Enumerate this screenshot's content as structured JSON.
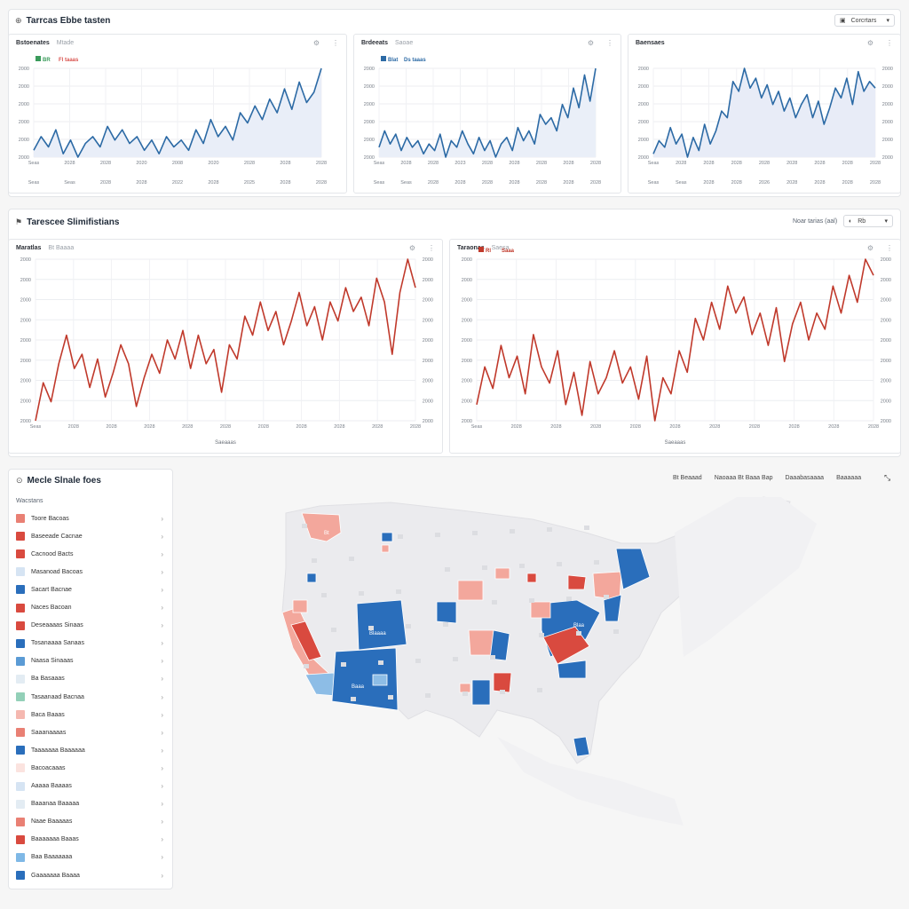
{
  "header": {
    "icon": "chart-icon",
    "title": "Tarrcas Ebbe tasten",
    "dropdown_label": "Corcrtars"
  },
  "top_charts": [
    {
      "title": "Bstoenates",
      "subtitle": "Mtade",
      "tag1": "BR",
      "tag2": "Fl taaas",
      "tag_colors": [
        "#3a9b5b",
        "#d9534f"
      ],
      "line_color": "#2c6aa5",
      "fill": "#e9eef8",
      "y_ticks": [
        "2000",
        "2000",
        "2000",
        "2000",
        "2000",
        "2000"
      ],
      "x_ticks": [
        "Seas",
        "2028",
        "2028",
        "2020",
        "2008",
        "2020",
        "2028",
        "2028",
        "2028"
      ],
      "x_ticks2": [
        "Seas",
        "Seas",
        "2028",
        "2028",
        "2022",
        "2028",
        "2025",
        "2028",
        "2028"
      ],
      "chart_data": {
        "type": "line",
        "x": [
          1,
          2,
          3,
          4,
          5,
          6,
          7,
          8,
          9,
          10,
          11,
          12,
          13,
          14,
          15,
          16,
          17,
          18,
          19,
          20,
          21,
          22,
          23,
          24,
          25,
          26,
          27,
          28,
          29,
          30,
          31,
          32,
          33,
          34,
          35,
          36,
          37,
          38,
          39,
          40
        ],
        "series": [
          {
            "values": [
              22,
              30,
              24,
              34,
              20,
              28,
              18,
              26,
              30,
              24,
              36,
              28,
              34,
              26,
              30,
              22,
              28,
              20,
              30,
              24,
              28,
              22,
              34,
              26,
              40,
              30,
              36,
              28,
              44,
              38,
              48,
              40,
              52,
              44,
              58,
              46,
              62,
              50,
              56,
              70
            ]
          }
        ]
      }
    },
    {
      "title": "Brdeeats",
      "subtitle": "Saoae",
      "tag1": "Blat",
      "tag2": "Ds taaas",
      "tag_colors": [
        "#2c6aa5",
        "#2c6aa5"
      ],
      "line_color": "#2c6aa5",
      "fill": "#eaeff8",
      "y_ticks": [
        "2000",
        "2000",
        "2000",
        "2000",
        "2000",
        "2000"
      ],
      "x_ticks": [
        "Seas",
        "2028",
        "2028",
        "2023",
        "2028",
        "2028",
        "2028",
        "2028",
        "2028"
      ],
      "x_ticks2": [
        "Seas",
        "Seas",
        "2028",
        "2028",
        "2028",
        "2028",
        "2028",
        "2028",
        "2028"
      ],
      "chart_data": {
        "type": "line",
        "x": [
          1,
          2,
          3,
          4,
          5,
          6,
          7,
          8,
          9,
          10,
          11,
          12,
          13,
          14,
          15,
          16,
          17,
          18,
          19,
          20,
          21,
          22,
          23,
          24,
          25,
          26,
          27,
          28,
          29,
          30,
          31,
          32,
          33,
          34,
          35,
          36,
          37,
          38,
          39,
          40
        ],
        "series": [
          {
            "values": [
              26,
              36,
              28,
              34,
              24,
              32,
              26,
              30,
              22,
              28,
              24,
              34,
              20,
              30,
              26,
              36,
              28,
              22,
              32,
              24,
              30,
              20,
              28,
              32,
              24,
              38,
              30,
              36,
              28,
              46,
              40,
              44,
              36,
              52,
              44,
              62,
              50,
              70,
              54,
              74
            ]
          }
        ]
      }
    },
    {
      "title": "Baensaes",
      "subtitle": "",
      "tag1": "",
      "tag2": "",
      "tag_colors": [
        "#2c6aa5",
        "#2c6aa5"
      ],
      "line_color": "#2c6aa5",
      "fill": "#e8ecf7",
      "y_ticks": [
        "2000",
        "2000",
        "2000",
        "2000",
        "2000",
        "2000"
      ],
      "x_ticks": [
        "Seas",
        "2028",
        "2028",
        "2028",
        "2028",
        "2028",
        "2028",
        "2028",
        "2028"
      ],
      "x_ticks2": [
        "Seas",
        "Seas",
        "2028",
        "2028",
        "2026",
        "2028",
        "2028",
        "2028",
        "2028"
      ],
      "chart_data": {
        "type": "line",
        "x": [
          1,
          2,
          3,
          4,
          5,
          6,
          7,
          8,
          9,
          10,
          11,
          12,
          13,
          14,
          15,
          16,
          17,
          18,
          19,
          20,
          21,
          22,
          23,
          24,
          25,
          26,
          27,
          28,
          29,
          30,
          31,
          32,
          33,
          34,
          35,
          36,
          37,
          38,
          39,
          40
        ],
        "series": [
          {
            "values": [
              40,
              48,
              44,
              56,
              46,
              52,
              38,
              50,
              42,
              58,
              46,
              54,
              66,
              62,
              84,
              78,
              92,
              80,
              86,
              74,
              82,
              70,
              78,
              66,
              74,
              62,
              70,
              76,
              62,
              72,
              58,
              68,
              80,
              74,
              86,
              70,
              90,
              78,
              84,
              80
            ]
          }
        ]
      }
    }
  ],
  "mid_section": {
    "icon": "flag-icon",
    "title": "Tarescee Slimifistians",
    "control_label": "Noar tarias (aal)",
    "control_value": "Rb"
  },
  "mid_charts": [
    {
      "title": "Maratlas",
      "subtitle": "Bt Baaaa",
      "tag1": "",
      "tag2": "",
      "line_color": "#c0392b",
      "y_ticks": [
        "2000",
        "2000",
        "2000",
        "2000",
        "2000",
        "2000",
        "2000",
        "2000",
        "2000"
      ],
      "x_ticks": [
        "Seas",
        "2028",
        "2028",
        "2028",
        "2028",
        "2028",
        "2028",
        "2028",
        "2028",
        "2028",
        "2028"
      ],
      "x_label": "Saeaaas",
      "chart_data": {
        "type": "line",
        "x": [
          1,
          2,
          3,
          4,
          5,
          6,
          7,
          8,
          9,
          10,
          11,
          12,
          13,
          14,
          15,
          16,
          17,
          18,
          19,
          20,
          21,
          22,
          23,
          24,
          25,
          26,
          27,
          28,
          29,
          30,
          31,
          32,
          33,
          34,
          35,
          36,
          37,
          38,
          39,
          40,
          41,
          42,
          43,
          44,
          45,
          46,
          47,
          48,
          49,
          50
        ],
        "series": [
          {
            "values": [
              20,
              36,
              28,
              44,
              56,
              42,
              48,
              34,
              46,
              30,
              40,
              52,
              44,
              26,
              38,
              48,
              40,
              54,
              46,
              58,
              42,
              56,
              44,
              50,
              32,
              52,
              46,
              64,
              56,
              70,
              58,
              66,
              52,
              62,
              74,
              60,
              68,
              54,
              70,
              62,
              76,
              66,
              72,
              60,
              80,
              70,
              48,
              74,
              88,
              76
            ]
          }
        ]
      }
    },
    {
      "title": "Taraonas",
      "subtitle": "Saesa",
      "tag1": "Rl",
      "tag2": "Saaa",
      "line_color": "#c0392b",
      "y_ticks": [
        "2000",
        "2000",
        "2000",
        "2000",
        "2000",
        "2000",
        "2000",
        "2000",
        "2000"
      ],
      "x_ticks": [
        "Seas",
        "2028",
        "2028",
        "2028",
        "2028",
        "2028",
        "2028",
        "2028",
        "2028",
        "2028",
        "2028"
      ],
      "x_label": "Saeaaas",
      "chart_data": {
        "type": "line",
        "x": [
          1,
          2,
          3,
          4,
          5,
          6,
          7,
          8,
          9,
          10,
          11,
          12,
          13,
          14,
          15,
          16,
          17,
          18,
          19,
          20,
          21,
          22,
          23,
          24,
          25,
          26,
          27,
          28,
          29,
          30,
          31,
          32,
          33,
          34,
          35,
          36,
          37,
          38,
          39,
          40,
          41,
          42,
          43,
          44,
          45,
          46,
          47,
          48,
          49,
          50
        ],
        "series": [
          {
            "values": [
              36,
              50,
              42,
              58,
              46,
              54,
              40,
              62,
              50,
              44,
              56,
              36,
              48,
              32,
              52,
              40,
              46,
              56,
              44,
              50,
              38,
              54,
              30,
              46,
              40,
              56,
              48,
              68,
              60,
              74,
              64,
              80,
              70,
              76,
              62,
              70,
              58,
              72,
              52,
              66,
              74,
              60,
              70,
              64,
              80,
              70,
              84,
              74,
              90,
              84
            ]
          }
        ]
      }
    }
  ],
  "states_panel": {
    "icon": "map-pin-icon",
    "title": "Mecle Slnale foes",
    "subheader": "Wacstans",
    "items": [
      {
        "label": "Toore Bacoas",
        "color": "#e98074"
      },
      {
        "label": "Baseeade Cacnae",
        "color": "#d94a3f"
      },
      {
        "label": "Cacnood Bacts",
        "color": "#d94a3f"
      },
      {
        "label": "Masanoad Bacoas",
        "color": "#d6e4f3"
      },
      {
        "label": "Sacart Bacnae",
        "color": "#2a6ebb"
      },
      {
        "label": "Naces Bacoan",
        "color": "#d94a3f"
      },
      {
        "label": "Deseaaaas Sinaas",
        "color": "#d94a3f"
      },
      {
        "label": "Tosanaaaa Sanaas",
        "color": "#2a6ebb"
      },
      {
        "label": "Naasa Sinaaas",
        "color": "#5b9bd5"
      },
      {
        "label": "Ba Basaaas",
        "color": "#e3ecf3"
      },
      {
        "label": "Tasaanaad Bacnaa",
        "color": "#93d0b8"
      },
      {
        "label": "Baca Baaas",
        "color": "#f5b8b0"
      },
      {
        "label": "Saaanaaaas",
        "color": "#e98074"
      },
      {
        "label": "Taaaaaaa Baaaaaa",
        "color": "#2a6ebb"
      },
      {
        "label": "Bacoacaaas",
        "color": "#fbe3df"
      },
      {
        "label": "Aaaaa Baaaas",
        "color": "#d6e4f3"
      },
      {
        "label": "Baaanaa Baaaaa",
        "color": "#e3ecf3"
      },
      {
        "label": "Naae Baaaaas",
        "color": "#e98074"
      },
      {
        "label": "Baaaaaaa Baaas",
        "color": "#d94a3f"
      },
      {
        "label": "Baa Baaaaaaa",
        "color": "#7fb8e6"
      },
      {
        "label": "Gaaaaaaa Baaaa",
        "color": "#2a6ebb"
      }
    ]
  },
  "map": {
    "controls": [
      "Bt Beaaad",
      "Naoaaa Bt Baaa Bap",
      "Daaabasaaaa",
      "Baaaaaa"
    ],
    "labels": [
      "Bt",
      "Blaaaa",
      "Blaa",
      "Baaa"
    ],
    "legend_colors": {
      "red": "#d94a3f",
      "light_red": "#f3a79c",
      "blue": "#2a6ebb",
      "light_blue": "#8dbde6",
      "land": "#e9e9ec"
    }
  }
}
